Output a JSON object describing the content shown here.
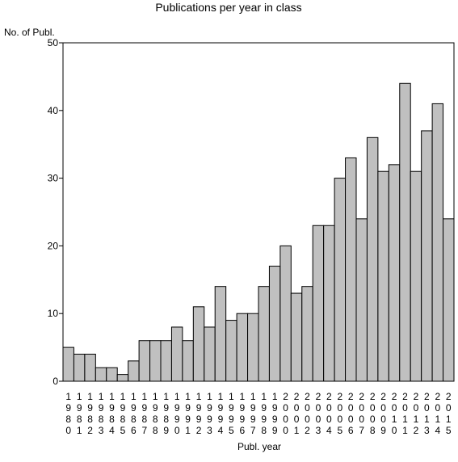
{
  "chart_data": {
    "type": "bar",
    "title": "Publications per year in class",
    "ylabel": "No. of Publ.",
    "xlabel": "Publ. year",
    "ylim": [
      0,
      50
    ],
    "yticks": [
      0,
      10,
      20,
      30,
      40,
      50
    ],
    "categories": [
      "1980",
      "1981",
      "1982",
      "1983",
      "1984",
      "1985",
      "1986",
      "1987",
      "1988",
      "1989",
      "1990",
      "1991",
      "1992",
      "1993",
      "1994",
      "1995",
      "1996",
      "1997",
      "1998",
      "1999",
      "2000",
      "2001",
      "2002",
      "2003",
      "2004",
      "2005",
      "2006",
      "2007",
      "2008",
      "2009",
      "2010",
      "2011",
      "2012",
      "2013",
      "2014",
      "2015"
    ],
    "values": [
      5,
      4,
      4,
      2,
      2,
      1,
      3,
      6,
      6,
      6,
      8,
      6,
      11,
      8,
      14,
      9,
      10,
      10,
      14,
      17,
      20,
      13,
      14,
      23,
      23,
      30,
      33,
      24,
      36,
      31,
      32,
      44,
      31,
      37,
      41,
      24
    ],
    "bar_color": "#c0c0c0",
    "bar_stroke": "#000000",
    "grid": false,
    "legend": "none"
  }
}
